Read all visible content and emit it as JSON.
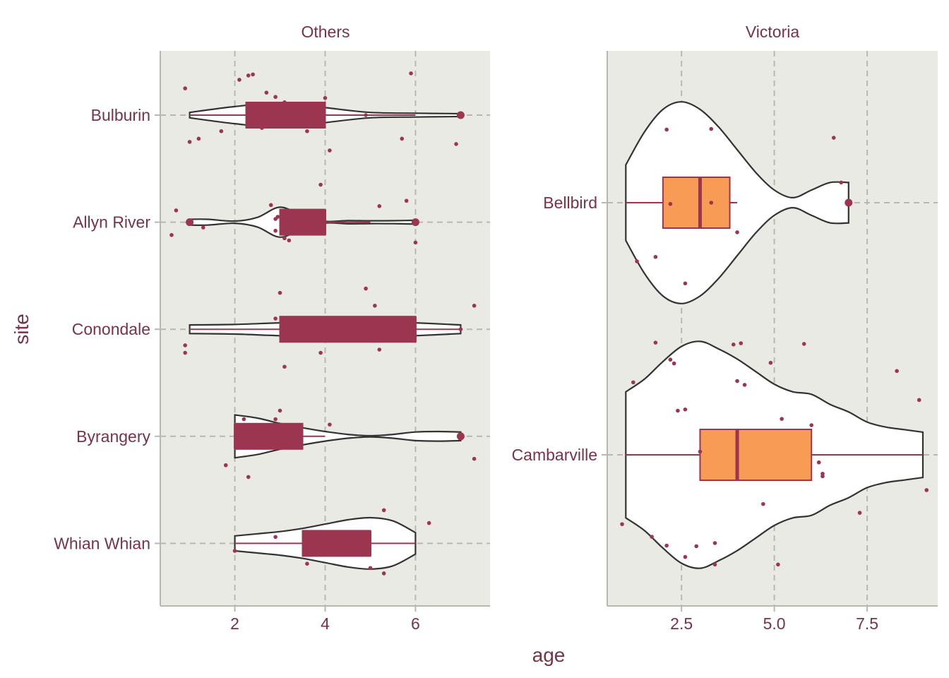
{
  "chart_data": {
    "type": "violin",
    "xlabel": "age",
    "ylabel": "site",
    "colors": {
      "panel_bg": "#e9eae4",
      "grid": "#b8b9ae",
      "axis": "#b8b9ae",
      "box_others": "#9c3650",
      "box_victoria": "#f79b55",
      "box_victoria_border": "#9c3650",
      "points": "#9c3650",
      "violin_fill": "#ffffff",
      "violin_stroke": "#333333",
      "text": "#7a3246"
    },
    "facets": [
      {
        "title": "Others",
        "xlim": [
          0.35,
          7.65
        ],
        "x_ticks": [
          2,
          4,
          6
        ],
        "x_tick_labels": [
          "2",
          "4",
          "6"
        ],
        "categories": [
          "Bulburin",
          "Allyn River",
          "Conondale",
          "Byrangery",
          "Whian Whian"
        ],
        "sites": [
          {
            "name": "Bulburin",
            "violin": {
              "x": [
                1,
                2,
                3,
                4,
                5,
                6,
                7
              ],
              "half_width": [
                0.025,
                0.08,
                0.115,
                0.07,
                0.025,
                0.018,
                0.013
              ]
            },
            "box": {
              "whisker_low": 1,
              "q1": 2.25,
              "median": 3.0,
              "q3": 4.0,
              "whisker_high": 6
            },
            "outliers": [
              7
            ],
            "points": [
              [
                0.9,
                0.25
              ],
              [
                1.0,
                -0.25
              ],
              [
                1.2,
                -0.22
              ],
              [
                1.7,
                -0.15
              ],
              [
                2.1,
                0.33
              ],
              [
                2.3,
                0.37
              ],
              [
                2.4,
                0.38
              ],
              [
                2.6,
                -0.12
              ],
              [
                2.7,
                0.21
              ],
              [
                2.9,
                0.17
              ],
              [
                3.0,
                0.08
              ],
              [
                3.1,
                0.12
              ],
              [
                3.2,
                0.05
              ],
              [
                3.3,
                0.08
              ],
              [
                3.4,
                0.07
              ],
              [
                3.6,
                -0.15
              ],
              [
                4.0,
                0.16
              ],
              [
                4.1,
                -0.33
              ],
              [
                4.9,
                0.0
              ],
              [
                5.7,
                -0.22
              ],
              [
                5.9,
                0.39
              ],
              [
                6.9,
                -0.27
              ]
            ]
          },
          {
            "name": "Allyn River",
            "violin": {
              "x": [
                1,
                1.4,
                2,
                2.5,
                3,
                3.5,
                4,
                4.5,
                5,
                5.5,
                6
              ],
              "half_width": [
                0.027,
                0.027,
                0.01,
                0.045,
                0.14,
                0.06,
                0.008,
                0.015,
                0.013,
                0.014,
                0.018
              ]
            },
            "box": {
              "whisker_low": 3,
              "q1": 3.0,
              "median": 4.0,
              "q3": 4.0,
              "whisker_high": 5
            },
            "outliers": [
              1,
              6
            ],
            "points": [
              [
                0.7,
                0.11
              ],
              [
                0.6,
                -0.12
              ],
              [
                1.3,
                -0.05
              ],
              [
                2.8,
                0.16
              ],
              [
                2.9,
                0.03
              ],
              [
                2.9,
                -0.08
              ],
              [
                2.95,
                0.05
              ],
              [
                3.1,
                0.07
              ],
              [
                3.1,
                -0.15
              ],
              [
                3.2,
                -0.17
              ],
              [
                3.3,
                -0.08
              ],
              [
                3.9,
                0.35
              ],
              [
                5.2,
                0.15
              ],
              [
                5.8,
                0.2
              ],
              [
                6.0,
                -0.19
              ]
            ]
          },
          {
            "name": "Conondale",
            "violin": {
              "x": [
                1,
                2,
                3,
                4,
                5,
                6,
                7
              ],
              "half_width": [
                0.04,
                0.045,
                0.06,
                0.07,
                0.075,
                0.06,
                0.04
              ]
            },
            "box": {
              "whisker_low": 1,
              "q1": 3.0,
              "median": 6.0,
              "q3": 6.0,
              "whisker_high": 7
            },
            "outliers": [],
            "points": [
              [
                0.9,
                -0.15
              ],
              [
                0.9,
                -0.22
              ],
              [
                3.0,
                0.34
              ],
              [
                3.1,
                -0.35
              ],
              [
                2.9,
                0.1
              ],
              [
                3.9,
                -0.22
              ],
              [
                4.9,
                0.38
              ],
              [
                5.1,
                0.22
              ],
              [
                5.2,
                -0.19
              ],
              [
                7.0,
                0.0
              ],
              [
                7.3,
                0.22
              ]
            ]
          },
          {
            "name": "Byrangery",
            "violin": {
              "x": [
                2,
                2.5,
                3,
                3.5,
                4,
                4.5,
                5,
                5.5,
                6,
                6.5,
                7
              ],
              "half_width": [
                0.2,
                0.17,
                0.12,
                0.08,
                0.045,
                0.018,
                0.005,
                0.018,
                0.04,
                0.045,
                0.04
              ]
            },
            "box": {
              "whisker_low": 2,
              "q1": 2.0,
              "median": 2.0,
              "q3": 3.5,
              "whisker_high": 4
            },
            "outliers": [
              7
            ],
            "points": [
              [
                2.2,
                0.16
              ],
              [
                2.9,
                0.16
              ],
              [
                3.0,
                0.24
              ],
              [
                4.1,
                0.11
              ],
              [
                1.8,
                -0.27
              ],
              [
                2.3,
                -0.38
              ],
              [
                7.3,
                -0.21
              ]
            ]
          },
          {
            "name": "Whian Whian",
            "violin": {
              "x": [
                2,
                2.5,
                3,
                3.5,
                4,
                4.5,
                5,
                5.5,
                6
              ],
              "half_width": [
                0.07,
                0.09,
                0.11,
                0.14,
                0.18,
                0.22,
                0.24,
                0.21,
                0.1
              ]
            },
            "box": {
              "whisker_low": 2,
              "q1": 3.5,
              "median": 5.0,
              "q3": 5.0,
              "whisker_high": 6
            },
            "outliers": [],
            "points": [
              [
                2.0,
                -0.07
              ],
              [
                2.9,
                0.06
              ],
              [
                3.6,
                -0.19
              ],
              [
                5.0,
                -0.23
              ],
              [
                5.3,
                -0.28
              ],
              [
                5.3,
                0.31
              ],
              [
                6.3,
                0.19
              ]
            ]
          }
        ]
      },
      {
        "title": "Victoria",
        "xlim": [
          0.5,
          9.4
        ],
        "x_ticks": [
          2.5,
          5.0,
          7.5
        ],
        "x_tick_labels": [
          "2.5",
          "5.0",
          "7.5"
        ],
        "categories": [
          "Bellbird",
          "Cambarville"
        ],
        "sites": [
          {
            "name": "Bellbird",
            "violin": {
              "x": [
                1,
                1.5,
                2,
                2.5,
                3,
                3.5,
                4,
                4.5,
                5,
                5.5,
                6,
                6.5,
                7
              ],
              "half_width": [
                0.15,
                0.28,
                0.37,
                0.4,
                0.37,
                0.3,
                0.21,
                0.12,
                0.05,
                0.02,
                0.05,
                0.08,
                0.08
              ]
            },
            "box": {
              "whisker_low": 1,
              "q1": 2.0,
              "median": 3.0,
              "q3": 3.8,
              "whisker_high": 4
            },
            "outliers": [
              7
            ],
            "points": [
              [
                1.3,
                -0.93
              ],
              [
                1.8,
                -0.86
              ],
              [
                2.1,
                1.16
              ],
              [
                2.2,
                -0.02
              ],
              [
                2.6,
                -1.28
              ],
              [
                3.3,
                1.17
              ],
              [
                3.3,
                0.0
              ],
              [
                4.0,
                -0.47
              ],
              [
                6.6,
                1.03
              ],
              [
                6.8,
                0.32
              ]
            ]
          },
          {
            "name": "Cambarville",
            "violin": {
              "x": [
                1,
                1.5,
                2,
                2.5,
                3,
                3.5,
                4,
                4.5,
                5,
                5.5,
                6,
                6.5,
                7,
                7.5,
                8,
                8.5,
                9
              ],
              "half_width": [
                0.25,
                0.3,
                0.37,
                0.43,
                0.45,
                0.42,
                0.38,
                0.33,
                0.28,
                0.25,
                0.24,
                0.2,
                0.17,
                0.13,
                0.11,
                0.1,
                0.09
              ]
            },
            "box": {
              "whisker_low": 1,
              "q1": 3.0,
              "median": 4.0,
              "q3": 6.0,
              "whisker_high": 9
            },
            "outliers": [],
            "points": [
              [
                0.9,
                -1.1
              ],
              [
                1.2,
                1.15
              ],
              [
                1.7,
                -1.3
              ],
              [
                1.8,
                1.78
              ],
              [
                2.1,
                -1.44
              ],
              [
                2.2,
                1.51
              ],
              [
                2.3,
                1.45
              ],
              [
                2.4,
                0.7
              ],
              [
                2.6,
                0.72
              ],
              [
                2.6,
                -1.62
              ],
              [
                2.9,
                -1.45
              ],
              [
                3.0,
                0.05
              ],
              [
                3.4,
                -1.4
              ],
              [
                3.4,
                -1.74
              ],
              [
                3.9,
                1.75
              ],
              [
                4.0,
                1.17
              ],
              [
                4.1,
                1.77
              ],
              [
                4.2,
                1.11
              ],
              [
                4.7,
                -0.78
              ],
              [
                4.9,
                1.46
              ],
              [
                5.2,
                0.57
              ],
              [
                5.1,
                -1.74
              ],
              [
                5.8,
                1.76
              ],
              [
                6.0,
                0.47
              ],
              [
                6.2,
                -0.12
              ],
              [
                6.3,
                -0.3
              ],
              [
                6.3,
                -0.34
              ],
              [
                7.3,
                -0.92
              ],
              [
                8.3,
                1.33
              ],
              [
                8.9,
                0.87
              ],
              [
                9.1,
                -0.56
              ]
            ]
          }
        ]
      }
    ]
  }
}
